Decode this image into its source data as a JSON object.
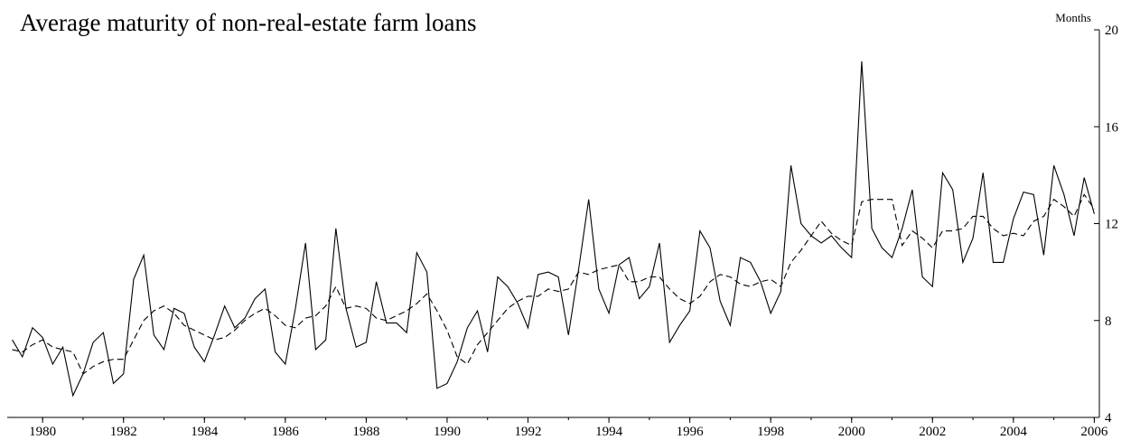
{
  "chart_data": {
    "type": "line",
    "title": "Average maturity of non-real-estate farm loans",
    "ylabel": "Months",
    "xlabel": "",
    "ylim": [
      4,
      20
    ],
    "y_ticks": [
      "4",
      "8",
      "12",
      "16",
      "20"
    ],
    "xlim": [
      1979.625,
      2006.625
    ],
    "x_ticks": [
      "1980",
      "1982",
      "1984",
      "1986",
      "1988",
      "1990",
      "1992",
      "1994",
      "1996",
      "1998",
      "2000",
      "2002",
      "2004",
      "2006"
    ],
    "grid": false,
    "legend": "none",
    "x_frequency": "quarterly",
    "series": [
      {
        "style": "solid",
        "x_start": 1979.75,
        "x_step": 0.25,
        "values": [
          7.2,
          6.5,
          7.7,
          7.3,
          6.2,
          6.9,
          4.9,
          5.8,
          7.1,
          7.5,
          5.4,
          5.8,
          9.7,
          10.7,
          7.4,
          6.8,
          8.5,
          8.3,
          6.9,
          6.3,
          7.4,
          8.6,
          7.7,
          8.1,
          8.9,
          9.3,
          6.7,
          6.2,
          8.5,
          11.2,
          6.8,
          7.2,
          11.8,
          8.5,
          6.9,
          7.1,
          9.6,
          7.9,
          7.9,
          7.5,
          10.8,
          10.0,
          5.2,
          5.4,
          6.3,
          7.7,
          8.4,
          6.7,
          9.8,
          9.4,
          8.7,
          7.7,
          9.9,
          10.0,
          9.8,
          7.4,
          10.1,
          13.0,
          9.3,
          8.3,
          10.3,
          10.6,
          8.9,
          9.4,
          11.2,
          7.1,
          7.8,
          8.4,
          11.7,
          11.0,
          8.8,
          7.8,
          10.6,
          10.4,
          9.6,
          8.3,
          9.2,
          14.4,
          12.0,
          11.5,
          11.2,
          11.5,
          11.0,
          10.6,
          18.7,
          11.8,
          11.0,
          10.6,
          11.8,
          13.4,
          9.8,
          9.4,
          14.1,
          13.4,
          10.4,
          11.4,
          14.1,
          10.4,
          10.4,
          12.2,
          13.3,
          13.2,
          10.7,
          14.4,
          13.2,
          11.5,
          13.9,
          12.4
        ]
      },
      {
        "style": "dashed",
        "x_start": 1979.75,
        "x_step": 0.25,
        "values": [
          6.8,
          6.7,
          7.0,
          7.2,
          6.9,
          6.8,
          6.7,
          5.8,
          6.1,
          6.3,
          6.4,
          6.4,
          7.2,
          8.0,
          8.4,
          8.6,
          8.3,
          7.8,
          7.6,
          7.4,
          7.2,
          7.3,
          7.6,
          8.0,
          8.3,
          8.5,
          8.2,
          7.8,
          7.7,
          8.1,
          8.2,
          8.6,
          9.4,
          8.5,
          8.6,
          8.5,
          8.1,
          8.0,
          8.2,
          8.4,
          8.7,
          9.1,
          8.4,
          7.6,
          6.5,
          6.2,
          7.0,
          7.5,
          8.0,
          8.5,
          8.8,
          9.0,
          9.0,
          9.3,
          9.2,
          9.3,
          10.0,
          9.9,
          10.1,
          10.2,
          10.3,
          9.6,
          9.6,
          9.8,
          9.8,
          9.3,
          8.9,
          8.7,
          9.0,
          9.6,
          9.9,
          9.8,
          9.5,
          9.4,
          9.6,
          9.7,
          9.4,
          10.4,
          10.9,
          11.5,
          12.1,
          11.6,
          11.3,
          11.1,
          12.9,
          13.0,
          13.0,
          13.0,
          11.1,
          11.7,
          11.4,
          11.0,
          11.7,
          11.7,
          11.8,
          12.3,
          12.3,
          11.8,
          11.5,
          11.6,
          11.5,
          12.1,
          12.3,
          13.0,
          12.7,
          12.3,
          13.2,
          12.6
        ]
      }
    ]
  }
}
